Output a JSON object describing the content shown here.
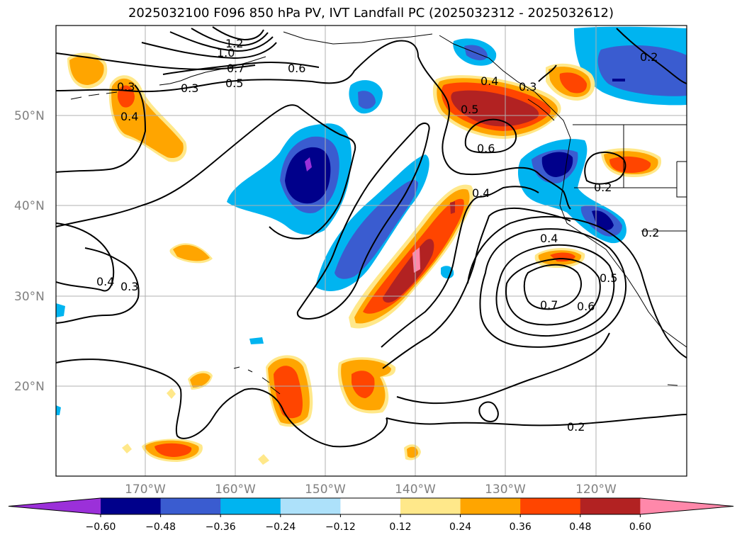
{
  "title": "2025032100 F096 850 hPa PV, IVT Landfall PC (2025032312 - 2025032612)",
  "latitude_labels": [
    "50°N",
    "40°N",
    "30°N",
    "20°N"
  ],
  "longitude_labels": [
    "170°W",
    "160°W",
    "150°W",
    "140°W",
    "130°W",
    "120°W"
  ],
  "contour_labels": [
    "1.2",
    "1.0",
    "0.7",
    "0.6",
    "0.5",
    "0.3",
    "0.3",
    "0.4",
    "0.4",
    "0.3",
    "0.4",
    "0.5",
    "0.6",
    "0.4",
    "0.2",
    "0.2",
    "0.4",
    "0.5",
    "0.6",
    "0.7",
    "0.2",
    "0.2",
    "0.3"
  ],
  "colorbar": {
    "tick_labels": [
      "−0.60",
      "−0.48",
      "−0.36",
      "−0.24",
      "−0.12",
      "0.12",
      "0.24",
      "0.36",
      "0.48",
      "0.60"
    ],
    "colors": [
      "#9b30d9",
      "#00008b",
      "#3a5cd0",
      "#00b4f0",
      "#ade1fa",
      "#ffffff",
      "#ffe88a",
      "#ffa500",
      "#ff4500",
      "#b22222",
      "#ff88aa"
    ]
  }
}
